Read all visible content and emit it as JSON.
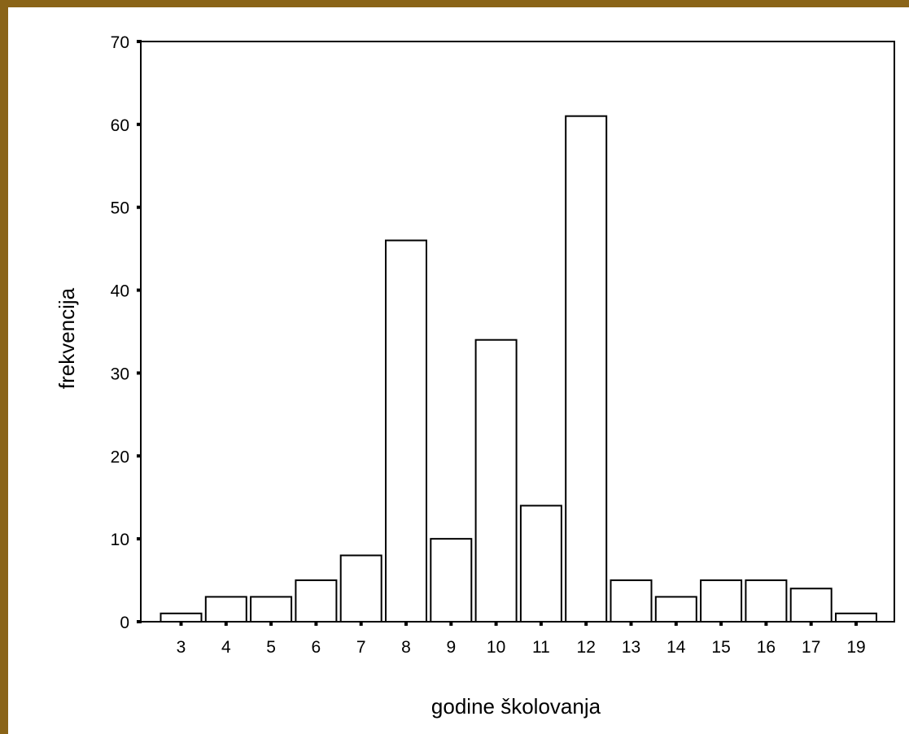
{
  "chart_data": {
    "type": "bar",
    "xlabel": "godine školovanja",
    "ylabel": "frekvencija",
    "categories": [
      "3",
      "4",
      "5",
      "6",
      "7",
      "8",
      "9",
      "10",
      "11",
      "12",
      "13",
      "14",
      "15",
      "16",
      "17",
      "19"
    ],
    "values": [
      1,
      3,
      3,
      5,
      8,
      46,
      10,
      34,
      14,
      61,
      5,
      3,
      5,
      5,
      4,
      1
    ],
    "ylim": [
      0,
      70
    ],
    "yticks": [
      0,
      10,
      20,
      30,
      40,
      50,
      60,
      70
    ],
    "grid": false,
    "legend": "none",
    "colors": {
      "bar_fill": "#ffffff",
      "bar_stroke": "#000000",
      "frame_border": "#8a6418"
    }
  }
}
